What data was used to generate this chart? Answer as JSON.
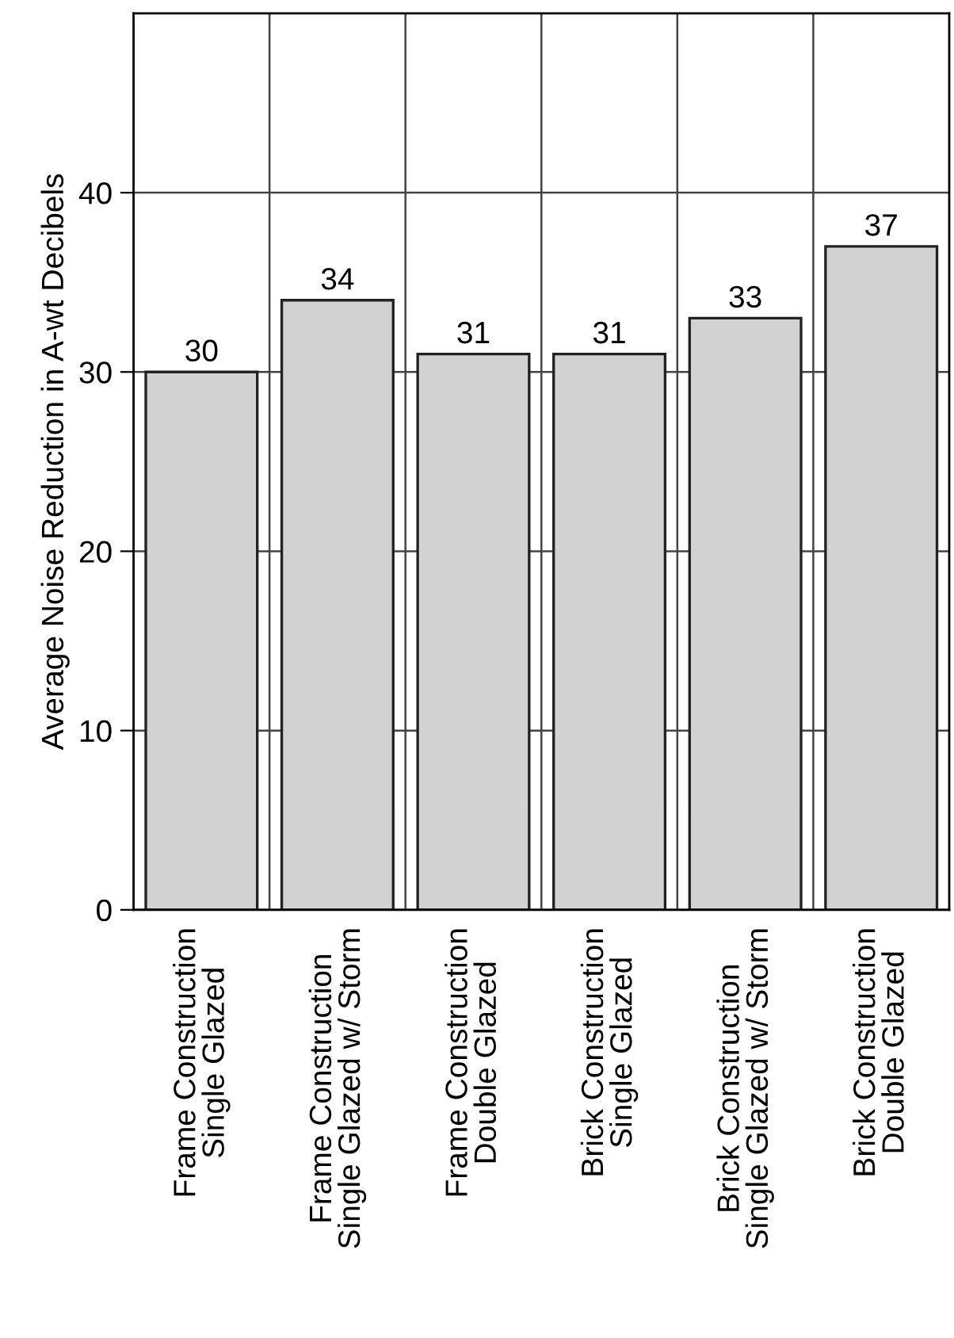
{
  "chart_data": {
    "type": "bar",
    "ylabel": "Average Noise Reduction in A-wt Decibels",
    "categories": [
      "Frame Construction\nSingle Glazed",
      "Frame Construction\nSingle Glazed w/ Storm",
      "Frame Construction\nDouble Glazed",
      "Brick Construction\nSingle Glazed",
      "Brick Construction\nSingle Glazed w/ Storm",
      "Brick Construction\nDouble Glazed"
    ],
    "values": [
      30,
      34,
      31,
      31,
      33,
      37
    ],
    "color": "#d2d2d2",
    "ylim": [
      0,
      50
    ],
    "yticks": [
      0,
      10,
      20,
      30,
      40
    ],
    "grid": true,
    "data_labels": true
  }
}
